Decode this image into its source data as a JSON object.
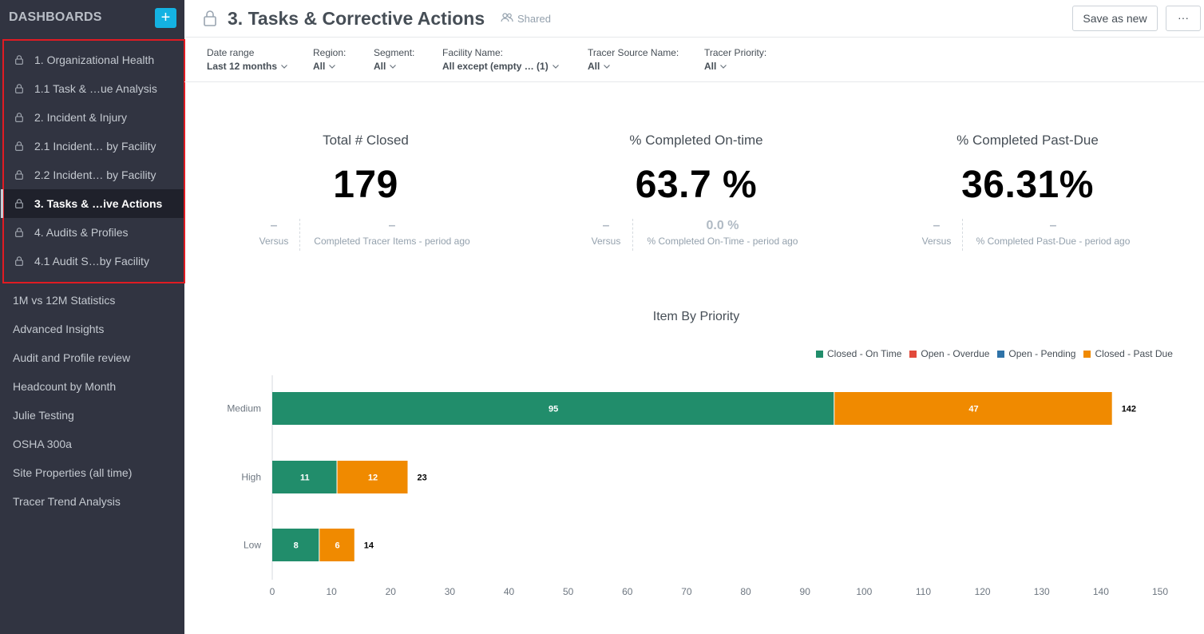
{
  "sidebar": {
    "title": "DASHBOARDS",
    "add_label": "+",
    "locked_items": [
      {
        "label": "1. Organizational Health",
        "active": false
      },
      {
        "label": "1.1 Task & …ue Analysis",
        "active": false
      },
      {
        "label": "2. Incident & Injury",
        "active": false
      },
      {
        "label": "2.1 Incident… by Facility",
        "active": false
      },
      {
        "label": "2.2 Incident… by Facility",
        "active": false
      },
      {
        "label": "3. Tasks & …ive Actions",
        "active": true
      },
      {
        "label": "4. Audits & Profiles",
        "active": false
      },
      {
        "label": "4.1 Audit S…by Facility",
        "active": false
      }
    ],
    "items": [
      "1M vs 12M Statistics",
      "Advanced Insights",
      "Audit and Profile review",
      "Headcount by Month",
      "Julie Testing",
      "OSHA 300a",
      "Site Properties (all time)",
      "Tracer Trend Analysis"
    ]
  },
  "header": {
    "title": "3. Tasks & Corrective Actions",
    "shared_label": "Shared",
    "save_label": "Save as new",
    "more_label": "···"
  },
  "filters": [
    {
      "label": "Date range",
      "value": "Last 12 months"
    },
    {
      "label": "Region:",
      "value": "All"
    },
    {
      "label": "Segment:",
      "value": "All"
    },
    {
      "label": "Facility Name:",
      "value": "All except (empty … (1)"
    },
    {
      "label": "Tracer Source Name:",
      "value": "All"
    },
    {
      "label": "Tracer Priority:",
      "value": "All"
    }
  ],
  "kpis": [
    {
      "title": "Total # Closed",
      "value": "179",
      "versus_value": "–",
      "versus_label": "Versus",
      "compare_value": "–",
      "compare_label": "Completed Tracer Items - period ago"
    },
    {
      "title": "% Completed On-time",
      "value": "63.7 %",
      "versus_value": "–",
      "versus_label": "Versus",
      "compare_value": "0.0 %",
      "compare_label": "% Completed On-Time - period ago"
    },
    {
      "title": "% Completed Past-Due",
      "value": "36.31%",
      "versus_value": "–",
      "versus_label": "Versus",
      "compare_value": "–",
      "compare_label": "% Completed Past-Due - period ago"
    }
  ],
  "colors": {
    "closed_on_time": "#218d6b",
    "open_overdue": "#e24a3b",
    "open_pending": "#2f73a8",
    "closed_past_due": "#f08a00"
  },
  "chart_data": {
    "type": "bar",
    "orientation": "horizontal",
    "stacked": true,
    "title": "Item By Priority",
    "categories": [
      "Medium",
      "High",
      "Low"
    ],
    "series": [
      {
        "name": "Closed - On Time",
        "color": "#218d6b",
        "values": [
          95,
          11,
          8
        ]
      },
      {
        "name": "Open - Overdue",
        "color": "#e24a3b",
        "values": [
          0,
          0,
          0
        ]
      },
      {
        "name": "Open - Pending",
        "color": "#2f73a8",
        "values": [
          0,
          0,
          0
        ]
      },
      {
        "name": "Closed - Past Due",
        "color": "#f08a00",
        "values": [
          47,
          12,
          6
        ]
      }
    ],
    "totals": [
      142,
      23,
      14
    ],
    "xlim": [
      0,
      150
    ],
    "xticks": [
      0,
      10,
      20,
      30,
      40,
      50,
      60,
      70,
      80,
      90,
      100,
      110,
      120,
      130,
      140,
      150
    ],
    "legend_position": "top-right",
    "grid": false
  }
}
